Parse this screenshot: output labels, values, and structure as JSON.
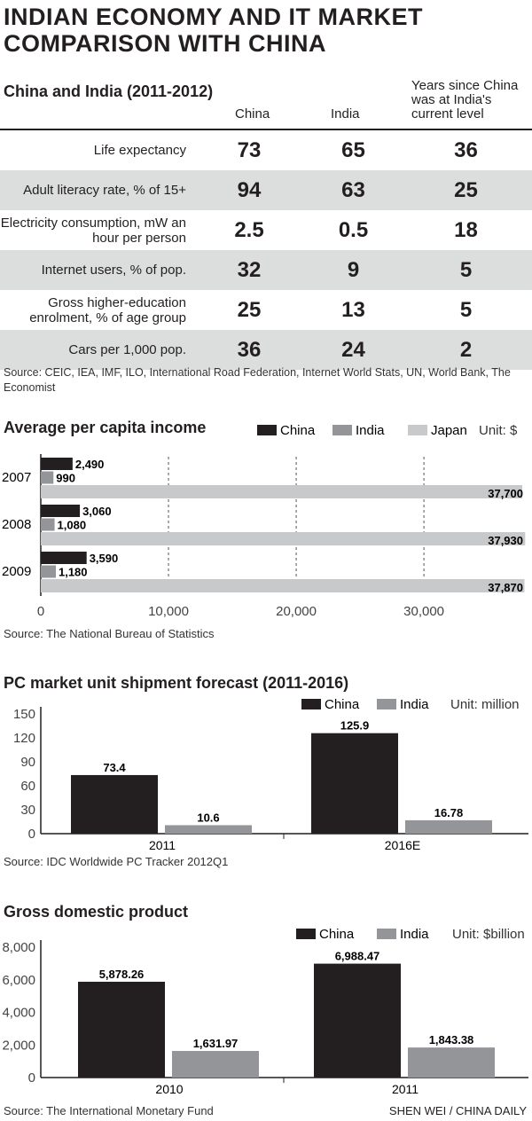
{
  "title": [
    "INDIAN ECONOMY AND IT MARKET",
    "COMPARISON WITH CHINA"
  ],
  "table": {
    "title": "China and India (2011-2012)",
    "headers": [
      "China",
      "India",
      "Years since China was at India's current level"
    ],
    "rows": [
      {
        "label": "Life expectancy",
        "china": "73",
        "india": "65",
        "years": "36"
      },
      {
        "label": "Adult literacy rate, % of 15+",
        "china": "94",
        "india": "63",
        "years": "25"
      },
      {
        "label": "Electricity consumption, mW an hour per person",
        "china": "2.5",
        "india": "0.5",
        "years": "18"
      },
      {
        "label": "Internet users, % of pop.",
        "china": "32",
        "india": "9",
        "years": "5"
      },
      {
        "label": "Gross higher-education enrolment, % of age group",
        "china": "25",
        "india": "13",
        "years": "5"
      },
      {
        "label": "Cars per 1,000 pop.",
        "china": "36",
        "india": "24",
        "years": "2"
      }
    ],
    "source": "Source: CEIC, IEA, IMF, ILO, International Road Federation, Internet World Stats, UN, World Bank, The Economist"
  },
  "colors": {
    "china": "#231f20",
    "india": "#939598",
    "japan": "#c8c9ca",
    "shade": "#dcdddd"
  },
  "chart_data": [
    {
      "type": "bar",
      "orientation": "horizontal",
      "title": "Average per capita income",
      "unit": "Unit: $",
      "categories": [
        "2007",
        "2008",
        "2009"
      ],
      "series": [
        {
          "name": "China",
          "values": [
            2490,
            3060,
            3590
          ],
          "labels": [
            "2,490",
            "3,060",
            "3,590"
          ]
        },
        {
          "name": "India",
          "values": [
            990,
            1080,
            1180
          ],
          "labels": [
            "990",
            "1,080",
            "1,180"
          ]
        },
        {
          "name": "Japan",
          "values": [
            37700,
            37930,
            37870
          ],
          "labels": [
            "37,700",
            "37,930",
            "37,870"
          ]
        }
      ],
      "xticks": [
        "0",
        "10,000",
        "20,000",
        "30,000"
      ],
      "xlim": [
        0,
        38000
      ],
      "grid": "dashed vertical",
      "source": "Source: The National Bureau of Statistics"
    },
    {
      "type": "bar",
      "title": "PC market unit shipment forecast (2011-2016)",
      "unit": "Unit: million",
      "categories": [
        "2011",
        "2016E"
      ],
      "series": [
        {
          "name": "China",
          "values": [
            73.4,
            125.9
          ],
          "labels": [
            "73.4",
            "125.9"
          ]
        },
        {
          "name": "India",
          "values": [
            10.6,
            16.78
          ],
          "labels": [
            "10.6",
            "16.78"
          ]
        }
      ],
      "yticks": [
        "0",
        "30",
        "60",
        "90",
        "120",
        "150"
      ],
      "ylim": [
        0,
        150
      ],
      "source": "Source: IDC Worldwide PC Tracker 2012Q1"
    },
    {
      "type": "bar",
      "title": "Gross domestic product",
      "unit": "Unit: $billion",
      "categories": [
        "2010",
        "2011"
      ],
      "series": [
        {
          "name": "China",
          "values": [
            5878.26,
            6988.47
          ],
          "labels": [
            "5,878.26",
            "6,988.47"
          ]
        },
        {
          "name": "India",
          "values": [
            1631.97,
            1843.38
          ],
          "labels": [
            "1,631.97",
            "1,843.38"
          ]
        }
      ],
      "yticks": [
        "0",
        "2,000",
        "4,000",
        "6,000",
        "8,000"
      ],
      "ylim": [
        0,
        8000
      ],
      "source": "Source: The International Monetary Fund"
    }
  ],
  "credit": "SHEN WEI / CHINA DAILY"
}
